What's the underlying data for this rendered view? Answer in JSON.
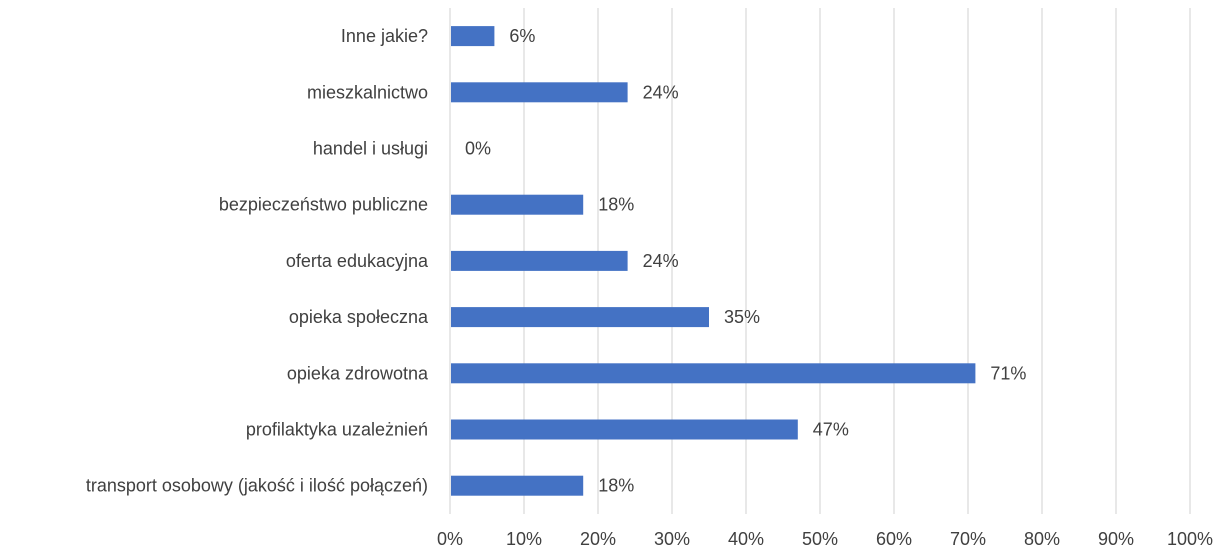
{
  "chart_data": {
    "type": "bar",
    "orientation": "horizontal",
    "categories": [
      "Inne jakie?",
      "mieszkalnictwo",
      "handel i usługi",
      "bezpieczeństwo publiczne",
      "oferta edukacyjna",
      "opieka społeczna",
      "opieka zdrowotna",
      "profilaktyka uzależnień",
      "transport osobowy (jakość i ilość połączeń)"
    ],
    "values": [
      6,
      24,
      0,
      18,
      24,
      35,
      71,
      47,
      18
    ],
    "value_labels": [
      "6%",
      "24%",
      "0%",
      "18%",
      "24%",
      "35%",
      "71%",
      "47%",
      "18%"
    ],
    "xlim": [
      0,
      100
    ],
    "x_ticks": [
      0,
      10,
      20,
      30,
      40,
      50,
      60,
      70,
      80,
      90,
      100
    ],
    "x_tick_labels": [
      "0%",
      "10%",
      "20%",
      "30%",
      "40%",
      "50%",
      "60%",
      "70%",
      "80%",
      "90%",
      "100%"
    ],
    "grid": true,
    "legend": "none",
    "title": "",
    "xlabel": "",
    "ylabel": "",
    "colors": {
      "bar": "#4472C4",
      "grid": "#d9d9d9",
      "text": "#404040"
    }
  }
}
